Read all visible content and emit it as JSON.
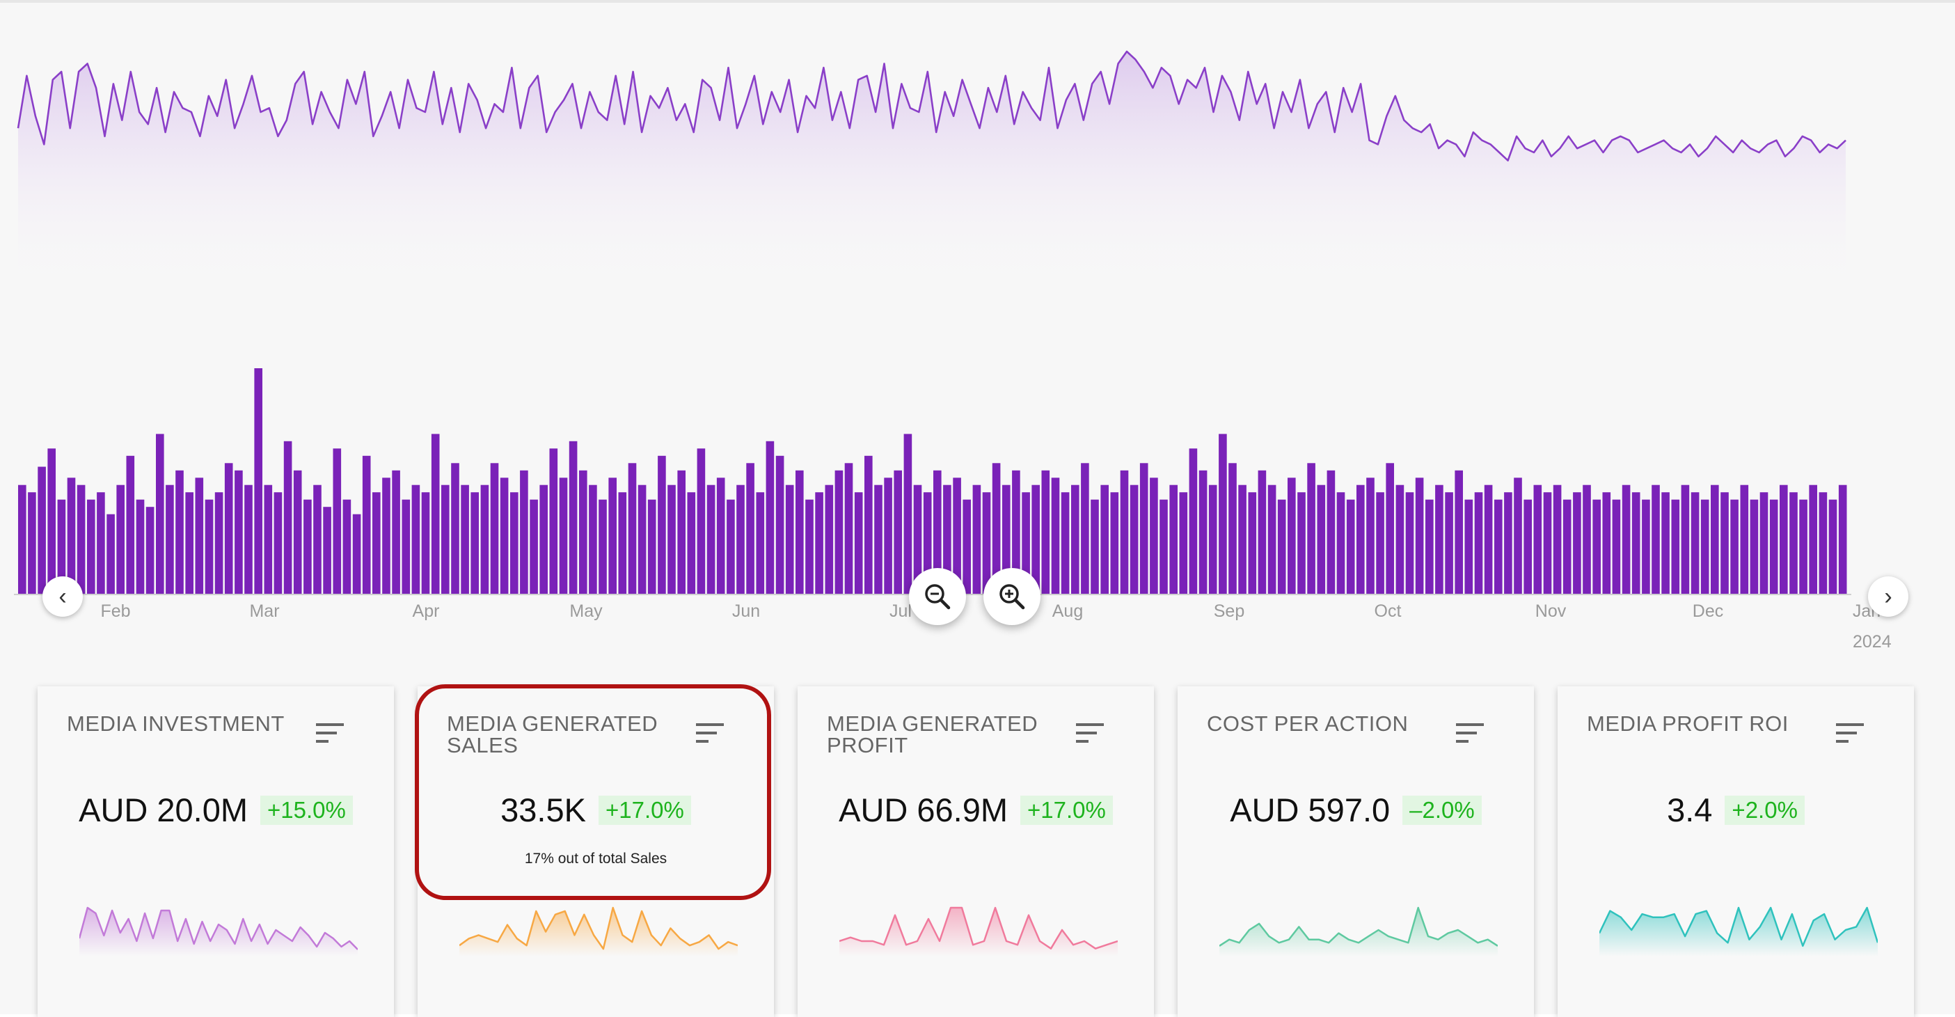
{
  "timeline": {
    "months": [
      "Feb",
      "Mar",
      "Apr",
      "May",
      "Jun",
      "Jul",
      "Aug",
      "Sep",
      "Oct",
      "Nov",
      "Dec",
      "Jan"
    ],
    "year_label": "2024",
    "prev_icon": "chevron-left-icon",
    "next_icon": "chevron-right-icon",
    "zoom_out_icon": "zoom-out-icon",
    "zoom_in_icon": "zoom-in-icon",
    "line_color": "#8a3fc8",
    "bar_color": "#7a22b8"
  },
  "chart_data": [
    {
      "type": "area",
      "title": "",
      "series": [
        {
          "values": [
            62,
            88,
            68,
            54,
            86,
            90,
            62,
            90,
            94,
            82,
            58,
            84,
            66,
            90,
            70,
            64,
            82,
            60,
            80,
            72,
            70,
            58,
            78,
            68,
            86,
            62,
            74,
            88,
            70,
            72,
            58,
            66,
            84,
            90,
            64,
            80,
            70,
            62,
            86,
            74,
            90,
            58,
            68,
            80,
            62,
            86,
            72,
            70,
            90,
            64,
            82,
            60,
            84,
            76,
            62,
            74,
            70,
            92,
            62,
            82,
            88,
            60,
            70,
            76,
            84,
            62,
            80,
            70,
            66,
            88,
            64,
            90,
            60,
            78,
            72,
            82,
            66,
            74,
            60,
            86,
            82,
            66,
            92,
            62,
            74,
            88,
            64,
            80,
            70,
            86,
            60,
            78,
            72,
            92,
            66,
            80,
            62,
            86,
            88,
            70,
            94,
            62,
            84,
            72,
            70,
            90,
            60,
            80,
            68,
            86,
            74,
            62,
            82,
            70,
            88,
            64,
            80,
            72,
            66,
            92,
            62,
            76,
            84,
            66,
            84,
            90,
            74,
            94,
            100,
            96,
            90,
            82,
            92,
            88,
            74,
            86,
            82,
            92,
            70,
            88,
            80,
            66,
            90,
            74,
            84,
            62,
            80,
            70,
            86,
            62,
            74,
            80,
            60,
            82,
            70,
            84,
            56,
            54,
            68,
            78,
            66,
            62,
            60,
            64,
            52,
            56,
            54,
            48,
            60,
            56,
            54,
            50,
            46,
            58,
            52,
            50,
            56,
            48,
            52,
            58,
            52,
            54,
            56,
            50,
            56,
            58,
            56,
            50,
            52,
            54,
            56,
            52,
            50,
            54,
            48,
            52,
            58,
            54,
            50,
            56,
            52,
            50,
            54,
            56,
            48,
            52,
            58,
            56,
            50,
            54,
            52,
            56
          ]
        }
      ],
      "grid": false
    },
    {
      "type": "bar",
      "title": "",
      "series": [
        {
          "values": [
            30,
            28,
            35,
            40,
            26,
            32,
            30,
            26,
            28,
            22,
            30,
            38,
            26,
            24,
            44,
            30,
            34,
            28,
            32,
            26,
            28,
            36,
            34,
            30,
            62,
            30,
            28,
            42,
            34,
            26,
            30,
            24,
            40,
            26,
            22,
            38,
            28,
            32,
            34,
            26,
            30,
            28,
            44,
            30,
            36,
            30,
            28,
            30,
            36,
            32,
            28,
            34,
            26,
            30,
            40,
            32,
            42,
            34,
            30,
            26,
            32,
            28,
            36,
            30,
            26,
            38,
            30,
            34,
            28,
            40,
            30,
            32,
            26,
            30,
            36,
            28,
            42,
            38,
            30,
            34,
            26,
            28,
            30,
            34,
            36,
            28,
            38,
            30,
            32,
            34,
            44,
            30,
            28,
            34,
            30,
            32,
            26,
            30,
            28,
            36,
            30,
            34,
            28,
            30,
            34,
            32,
            28,
            30,
            36,
            26,
            30,
            28,
            34,
            30,
            36,
            32,
            26,
            30,
            28,
            40,
            34,
            30,
            44,
            36,
            30,
            28,
            34,
            30,
            26,
            32,
            28,
            36,
            30,
            34,
            28,
            26,
            30,
            32,
            28,
            36,
            30,
            28,
            32,
            26,
            30,
            28,
            34,
            26,
            28,
            30,
            26,
            28,
            32,
            26,
            30,
            28,
            30,
            26,
            28,
            30,
            26,
            28,
            26,
            30,
            28,
            26,
            30,
            28,
            26,
            30,
            28,
            26,
            30,
            28,
            26,
            30,
            26,
            28,
            26,
            30,
            28,
            26,
            30,
            28,
            26,
            30
          ]
        }
      ],
      "grid": false
    }
  ],
  "cards": [
    {
      "title": "MEDIA INVESTMENT",
      "value": "AUD 20.0M",
      "change": "+15.0%",
      "sub": "",
      "color": "#c27ad8",
      "spark": [
        5,
        16,
        14,
        6,
        15,
        7,
        12,
        4,
        14,
        5,
        15,
        15,
        4,
        12,
        3,
        11,
        4,
        10,
        8,
        3,
        12,
        4,
        10,
        3,
        8,
        6,
        4,
        9,
        6,
        2,
        7,
        5,
        2,
        4,
        1
      ]
    },
    {
      "title": "MEDIA GENERATED SALES",
      "value": "33.5K",
      "change": "+17.0%",
      "sub": "17% out of total Sales",
      "color": "#f7a844",
      "spark": [
        2,
        4,
        5,
        4,
        3,
        8,
        4,
        2,
        12,
        6,
        11,
        12,
        5,
        11,
        5,
        1,
        13,
        5,
        3,
        12,
        5,
        2,
        7,
        4,
        2,
        3,
        5,
        1,
        3,
        2
      ]
    },
    {
      "title": "MEDIA GENERATED PROFIT",
      "value": "AUD 66.9M",
      "change": "+17.0%",
      "sub": "",
      "color": "#f07a9c",
      "spark": [
        3,
        4,
        3,
        3,
        2,
        10,
        2,
        3,
        9,
        3,
        12,
        12,
        2,
        3,
        12,
        3,
        2,
        10,
        3,
        1,
        6,
        2,
        3,
        1,
        2,
        3
      ]
    },
    {
      "title": "COST PER ACTION",
      "value": "AUD 597.0",
      "change": "–2.0%",
      "sub": "",
      "color": "#5ec9a0",
      "spark": [
        2,
        4,
        3,
        7,
        9,
        5,
        3,
        4,
        8,
        4,
        4,
        3,
        6,
        4,
        3,
        5,
        7,
        5,
        4,
        3,
        14,
        5,
        4,
        6,
        7,
        5,
        3,
        4,
        2
      ]
    },
    {
      "title": "MEDIA PROFIT ROI",
      "value": "3.4",
      "change": "+2.0%",
      "sub": "",
      "color": "#2fc2bd",
      "spark": [
        6,
        13,
        11,
        7,
        12,
        11,
        11,
        12,
        5,
        12,
        13,
        6,
        3,
        14,
        4,
        8,
        14,
        4,
        12,
        2,
        10,
        12,
        4,
        7,
        8,
        14,
        3
      ]
    }
  ]
}
